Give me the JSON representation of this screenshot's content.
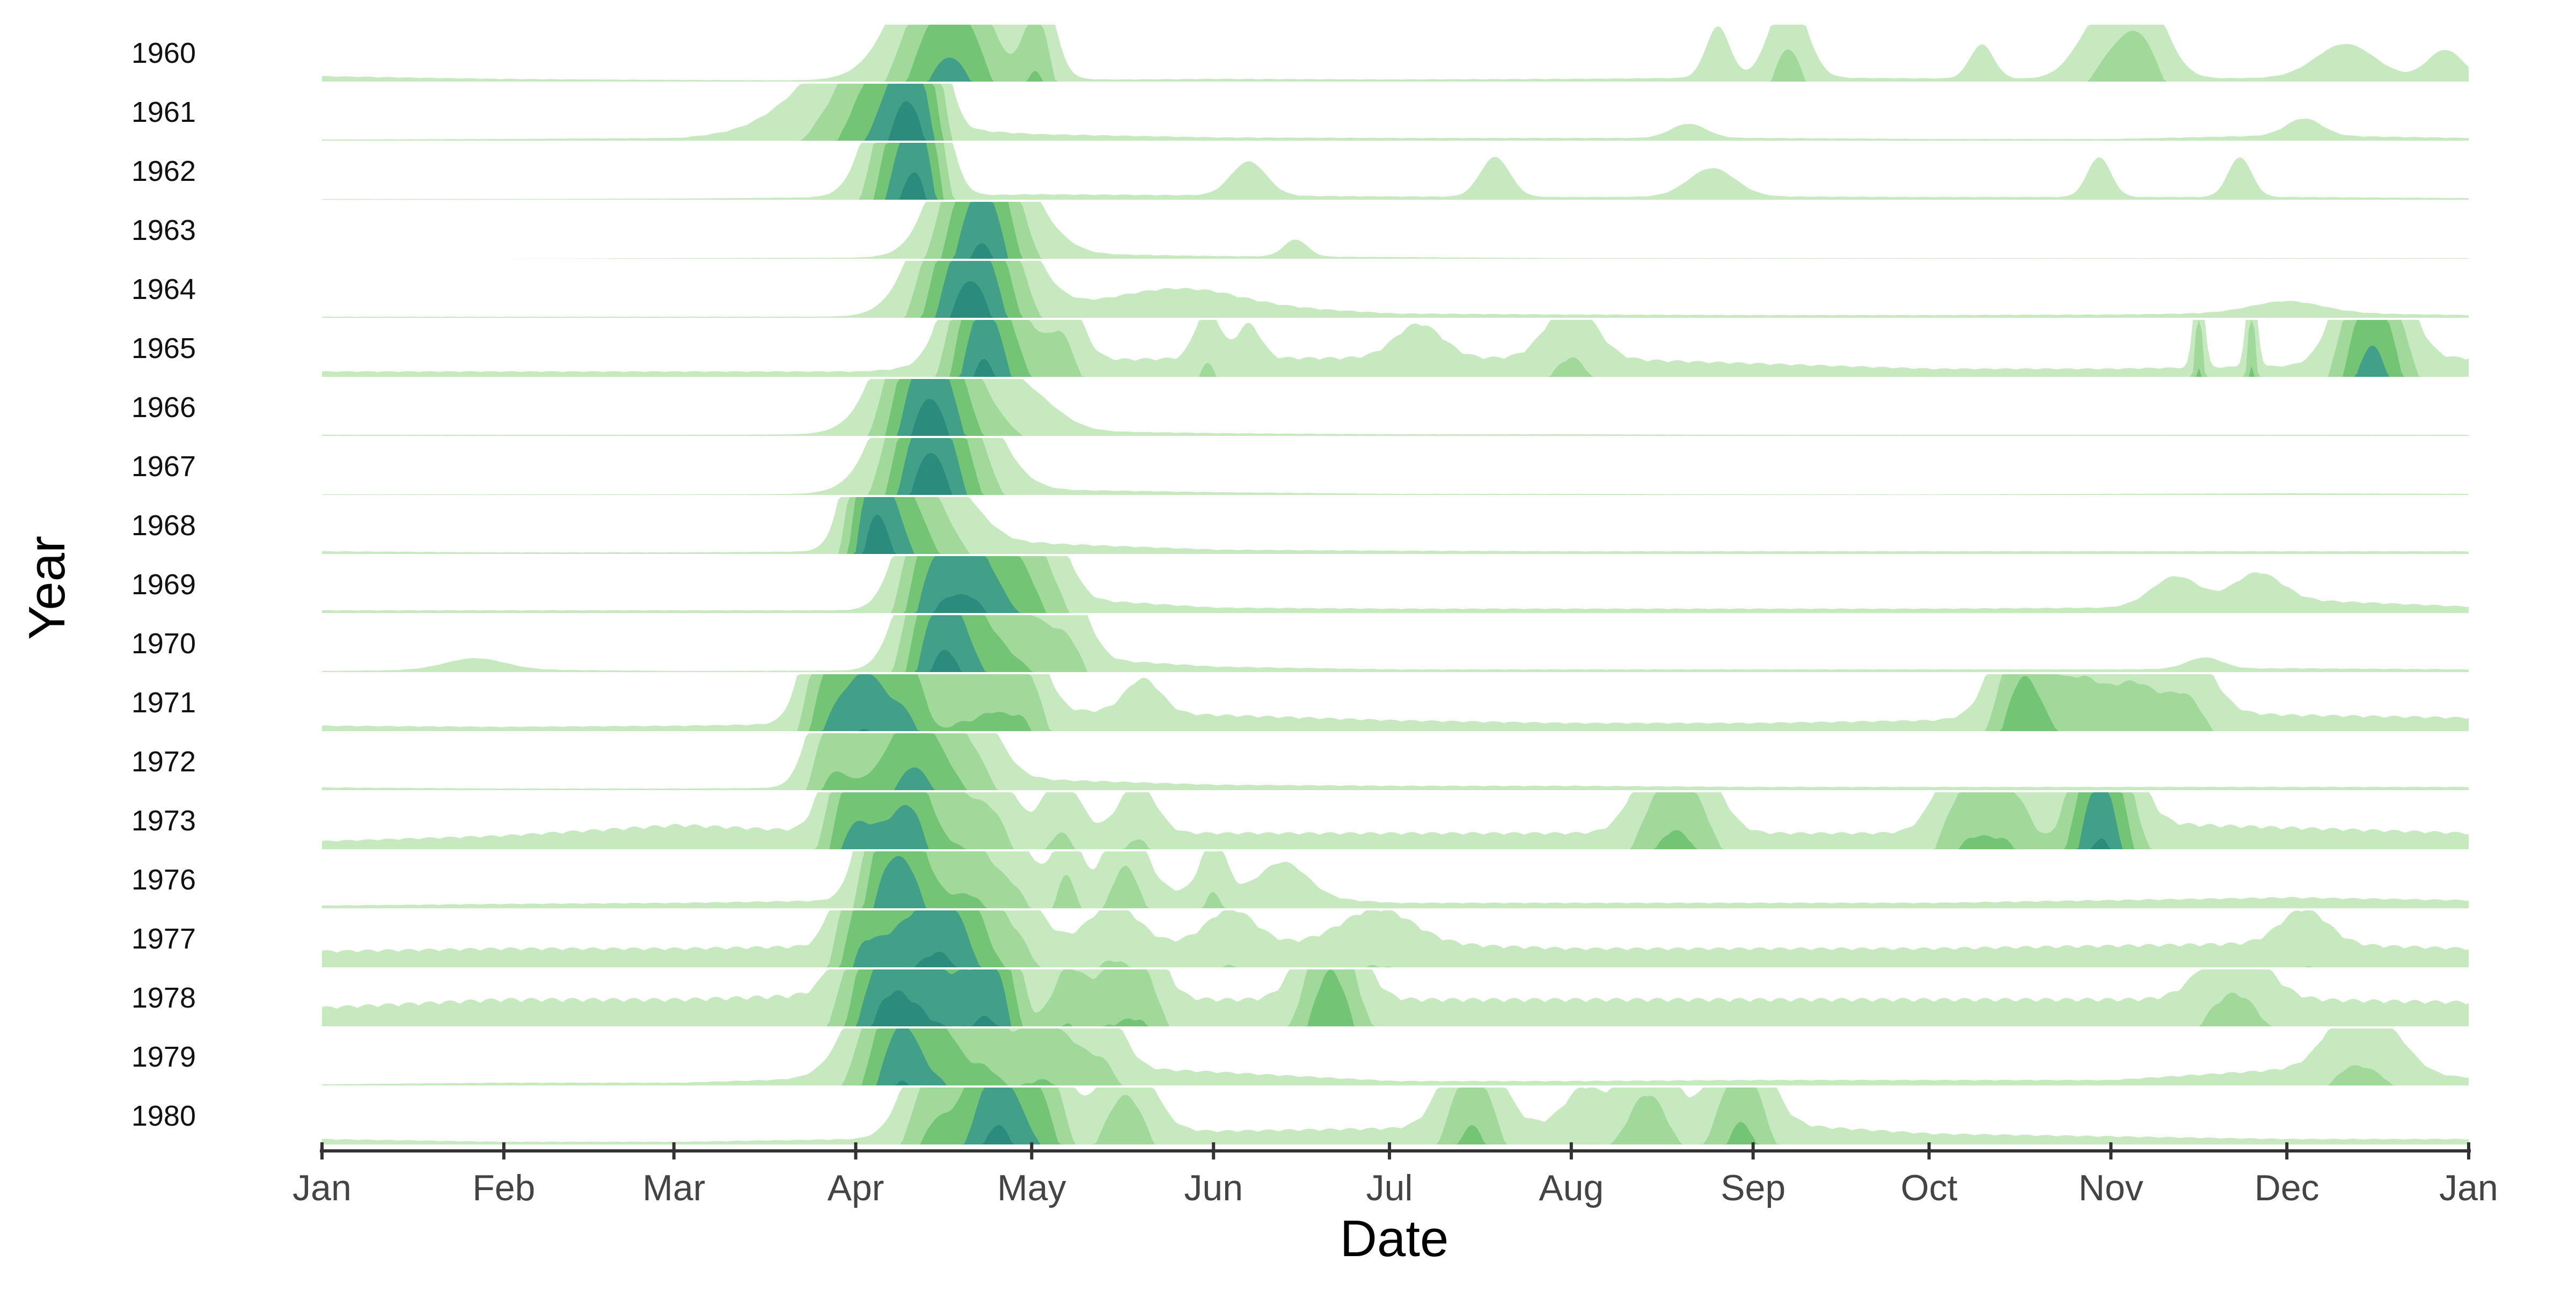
{
  "chart_data": {
    "type": "area",
    "subtype": "horizon",
    "xlabel": "Date",
    "ylabel": "Year",
    "x_ticks": [
      "Jan",
      "Feb",
      "Mar",
      "Apr",
      "May",
      "Jun",
      "Jul",
      "Aug",
      "Sep",
      "Oct",
      "Nov",
      "Dec",
      "Jan"
    ],
    "x_range": [
      "1960-01-01",
      "1961-01-01"
    ],
    "bands": 5,
    "band_colors": [
      "#c7e9c0",
      "#a1d99b",
      "#74c476",
      "#41a087",
      "#2b8c7e",
      "#1d6b6b",
      "#0f4c5c"
    ],
    "grid": false,
    "legend": "none",
    "years": [
      "1960",
      "1961",
      "1962",
      "1963",
      "1964",
      "1965",
      "1966",
      "1967",
      "1968",
      "1969",
      "1970",
      "1971",
      "1972",
      "1973",
      "1976",
      "1977",
      "1978",
      "1979",
      "1980"
    ],
    "series": [
      {
        "year": "1960",
        "baseline": [
          0.1,
          0.05,
          0.03,
          0.02,
          0.03,
          0.05,
          0.04,
          0.05,
          0.08,
          0.06,
          0.05,
          0.07,
          0.06
        ],
        "peaks": [
          {
            "d": 107,
            "h": 3.4,
            "w": 7
          },
          {
            "d": 122,
            "h": 1.8,
            "w": 2.5
          },
          {
            "d": 238,
            "h": 0.9,
            "w": 2
          },
          {
            "d": 250,
            "h": 1.5,
            "w": 3
          },
          {
            "d": 283,
            "h": 0.6,
            "w": 2
          },
          {
            "d": 303,
            "h": 0.9,
            "w": 4
          },
          {
            "d": 310,
            "h": 1.6,
            "w": 4
          },
          {
            "d": 345,
            "h": 0.6,
            "w": 5
          },
          {
            "d": 362,
            "h": 0.5,
            "w": 3
          }
        ]
      },
      {
        "year": "1961",
        "baseline": [
          0.02,
          0.03,
          0.05,
          0.3,
          0.12,
          0.06,
          0.05,
          0.05,
          0.05,
          0.03,
          0.03,
          0.1,
          0.05
        ],
        "peaks": [
          {
            "d": 88,
            "h": 1.0,
            "w": 8
          },
          {
            "d": 95,
            "h": 2.0,
            "w": 5
          },
          {
            "d": 100,
            "h": 2.5,
            "w": 3
          },
          {
            "d": 104,
            "h": 1.5,
            "w": 2.5
          },
          {
            "d": 233,
            "h": 0.25,
            "w": 3
          },
          {
            "d": 338,
            "h": 0.3,
            "w": 3
          }
        ]
      },
      {
        "year": "1962",
        "baseline": [
          0.01,
          0.01,
          0.02,
          0.05,
          0.1,
          0.08,
          0.06,
          0.05,
          0.06,
          0.05,
          0.05,
          0.05,
          0.03
        ],
        "peaks": [
          {
            "d": 96,
            "h": 0.8,
            "w": 4
          },
          {
            "d": 99,
            "h": 2.6,
            "w": 4
          },
          {
            "d": 103,
            "h": 2.2,
            "w": 3
          },
          {
            "d": 158,
            "h": 0.6,
            "w": 3
          },
          {
            "d": 200,
            "h": 0.7,
            "w": 2.5
          },
          {
            "d": 237,
            "h": 0.5,
            "w": 4
          },
          {
            "d": 303,
            "h": 0.7,
            "w": 2
          },
          {
            "d": 327,
            "h": 0.7,
            "w": 2
          }
        ]
      },
      {
        "year": "1963",
        "baseline": [
          0.0,
          0.0,
          0.01,
          0.02,
          0.1,
          0.05,
          0.03,
          0.01,
          0.01,
          0.01,
          0.01,
          0.01,
          0.01
        ],
        "peaks": [
          {
            "d": 110,
            "h": 2.6,
            "w": 5
          },
          {
            "d": 114,
            "h": 1.8,
            "w": 4
          },
          {
            "d": 120,
            "h": 0.7,
            "w": 5
          },
          {
            "d": 166,
            "h": 0.3,
            "w": 2
          }
        ]
      },
      {
        "year": "1964",
        "baseline": [
          0.02,
          0.02,
          0.02,
          0.02,
          0.15,
          0.25,
          0.08,
          0.06,
          0.05,
          0.05,
          0.06,
          0.1,
          0.05
        ],
        "peaks": [
          {
            "d": 110,
            "h": 3.0,
            "w": 6
          },
          {
            "d": 112,
            "h": 1.6,
            "w": 7
          },
          {
            "d": 145,
            "h": 0.3,
            "w": 10
          },
          {
            "d": 335,
            "h": 0.2,
            "w": 6
          }
        ]
      },
      {
        "year": "1965",
        "baseline": [
          0.1,
          0.1,
          0.1,
          0.1,
          0.3,
          0.35,
          0.35,
          0.35,
          0.25,
          0.15,
          0.15,
          0.2,
          0.35
        ],
        "peaks": [
          {
            "d": 111,
            "h": 2.8,
            "w": 4
          },
          {
            "d": 114,
            "h": 1.5,
            "w": 3
          },
          {
            "d": 119,
            "h": 1.4,
            "w": 3
          },
          {
            "d": 126,
            "h": 1.4,
            "w": 3
          },
          {
            "d": 151,
            "h": 0.9,
            "w": 2
          },
          {
            "d": 158,
            "h": 0.6,
            "w": 2
          },
          {
            "d": 187,
            "h": 0.6,
            "w": 4
          },
          {
            "d": 213,
            "h": 1.0,
            "w": 4
          },
          {
            "d": 320,
            "h": 2.0,
            "w": 0.8
          },
          {
            "d": 329,
            "h": 2.0,
            "w": 0.8
          },
          {
            "d": 348,
            "h": 2.2,
            "w": 4
          },
          {
            "d": 352,
            "h": 1.5,
            "w": 4
          }
        ]
      },
      {
        "year": "1966",
        "baseline": [
          0.02,
          0.02,
          0.02,
          0.03,
          0.1,
          0.05,
          0.03,
          0.03,
          0.02,
          0.02,
          0.02,
          0.02,
          0.02
        ],
        "peaks": [
          {
            "d": 104,
            "h": 3.0,
            "w": 5
          },
          {
            "d": 101,
            "h": 1.6,
            "w": 6
          },
          {
            "d": 113,
            "h": 0.9,
            "w": 5
          },
          {
            "d": 121,
            "h": 0.5,
            "w": 5
          }
        ]
      },
      {
        "year": "1967",
        "baseline": [
          0.01,
          0.01,
          0.01,
          0.02,
          0.1,
          0.05,
          0.02,
          0.02,
          0.01,
          0.01,
          0.02,
          0.03,
          0.02
        ],
        "peaks": [
          {
            "d": 104,
            "h": 3.0,
            "w": 5
          },
          {
            "d": 101,
            "h": 1.6,
            "w": 6
          },
          {
            "d": 112,
            "h": 1.0,
            "w": 5
          }
        ]
      },
      {
        "year": "1968",
        "baseline": [
          0.05,
          0.03,
          0.03,
          0.05,
          0.2,
          0.08,
          0.06,
          0.05,
          0.05,
          0.05,
          0.05,
          0.05,
          0.05
        ],
        "peaks": [
          {
            "d": 93,
            "h": 2.2,
            "w": 3
          },
          {
            "d": 96,
            "h": 2.6,
            "w": 4
          },
          {
            "d": 102,
            "h": 1.4,
            "w": 4
          },
          {
            "d": 108,
            "h": 0.8,
            "w": 5
          }
        ]
      },
      {
        "year": "1969",
        "baseline": [
          0.05,
          0.05,
          0.05,
          0.05,
          0.3,
          0.1,
          0.08,
          0.08,
          0.08,
          0.08,
          0.1,
          0.25,
          0.12
        ],
        "peaks": [
          {
            "d": 103,
            "h": 2.2,
            "w": 4
          },
          {
            "d": 109,
            "h": 2.6,
            "w": 5
          },
          {
            "d": 114,
            "h": 1.8,
            "w": 4
          },
          {
            "d": 120,
            "h": 1.5,
            "w": 3
          },
          {
            "d": 125,
            "h": 0.9,
            "w": 3
          },
          {
            "d": 316,
            "h": 0.5,
            "w": 4
          },
          {
            "d": 330,
            "h": 0.5,
            "w": 4
          }
        ]
      },
      {
        "year": "1970",
        "baseline": [
          0.02,
          0.05,
          0.02,
          0.03,
          0.3,
          0.1,
          0.05,
          0.05,
          0.05,
          0.05,
          0.05,
          0.07,
          0.05
        ],
        "peaks": [
          {
            "d": 103,
            "h": 2.4,
            "w": 4
          },
          {
            "d": 108,
            "h": 2.6,
            "w": 4
          },
          {
            "d": 115,
            "h": 1.6,
            "w": 4
          },
          {
            "d": 122,
            "h": 1.2,
            "w": 4
          },
          {
            "d": 128,
            "h": 0.9,
            "w": 3
          },
          {
            "d": 26,
            "h": 0.2,
            "w": 5
          },
          {
            "d": 321,
            "h": 0.2,
            "w": 3
          }
        ]
      },
      {
        "year": "1971",
        "baseline": [
          0.1,
          0.08,
          0.1,
          0.15,
          0.4,
          0.3,
          0.2,
          0.15,
          0.15,
          0.2,
          0.4,
          0.3,
          0.25
        ],
        "peaks": [
          {
            "d": 85,
            "h": 1.6,
            "w": 3
          },
          {
            "d": 90,
            "h": 2.2,
            "w": 4
          },
          {
            "d": 95,
            "h": 2.4,
            "w": 4
          },
          {
            "d": 101,
            "h": 2.0,
            "w": 3
          },
          {
            "d": 108,
            "h": 1.5,
            "w": 3
          },
          {
            "d": 114,
            "h": 1.6,
            "w": 3
          },
          {
            "d": 120,
            "h": 1.6,
            "w": 3
          },
          {
            "d": 140,
            "h": 0.6,
            "w": 3
          },
          {
            "d": 290,
            "h": 2.6,
            "w": 4
          },
          {
            "d": 300,
            "h": 1.4,
            "w": 4
          },
          {
            "d": 309,
            "h": 1.3,
            "w": 4
          },
          {
            "d": 318,
            "h": 1.2,
            "w": 4
          }
        ]
      },
      {
        "year": "1972",
        "baseline": [
          0.05,
          0.03,
          0.03,
          0.05,
          0.2,
          0.1,
          0.08,
          0.08,
          0.06,
          0.06,
          0.06,
          0.06,
          0.06
        ],
        "peaks": [
          {
            "d": 86,
            "h": 1.6,
            "w": 3
          },
          {
            "d": 92,
            "h": 1.6,
            "w": 4
          },
          {
            "d": 100,
            "h": 2.6,
            "w": 4
          },
          {
            "d": 106,
            "h": 1.4,
            "w": 4
          },
          {
            "d": 112,
            "h": 1.0,
            "w": 4
          }
        ]
      },
      {
        "year": "1973",
        "baseline": [
          0.15,
          0.25,
          0.45,
          0.3,
          0.3,
          0.3,
          0.3,
          0.3,
          0.3,
          0.3,
          0.5,
          0.4,
          0.3
        ],
        "peaks": [
          {
            "d": 89,
            "h": 2.0,
            "w": 3
          },
          {
            "d": 95,
            "h": 2.6,
            "w": 4
          },
          {
            "d": 101,
            "h": 2.2,
            "w": 3
          },
          {
            "d": 108,
            "h": 1.6,
            "w": 4
          },
          {
            "d": 115,
            "h": 1.0,
            "w": 3
          },
          {
            "d": 126,
            "h": 1.0,
            "w": 3
          },
          {
            "d": 139,
            "h": 0.9,
            "w": 3
          },
          {
            "d": 228,
            "h": 1.4,
            "w": 4
          },
          {
            "d": 234,
            "h": 1.3,
            "w": 4
          },
          {
            "d": 280,
            "h": 1.6,
            "w": 4
          },
          {
            "d": 288,
            "h": 1.5,
            "w": 4
          },
          {
            "d": 302,
            "h": 2.4,
            "w": 4
          },
          {
            "d": 305,
            "h": 1.6,
            "w": 4
          }
        ]
      },
      {
        "year": "1976",
        "baseline": [
          0.05,
          0.08,
          0.1,
          0.15,
          0.4,
          0.3,
          0.1,
          0.1,
          0.1,
          0.1,
          0.15,
          0.2,
          0.15
        ],
        "peaks": [
          {
            "d": 95,
            "h": 2.6,
            "w": 3
          },
          {
            "d": 100,
            "h": 2.4,
            "w": 3
          },
          {
            "d": 106,
            "h": 1.6,
            "w": 4
          },
          {
            "d": 112,
            "h": 1.2,
            "w": 3
          },
          {
            "d": 118,
            "h": 0.9,
            "w": 3
          },
          {
            "d": 127,
            "h": 1.2,
            "w": 2
          },
          {
            "d": 137,
            "h": 1.4,
            "w": 3
          },
          {
            "d": 152,
            "h": 1.0,
            "w": 2
          },
          {
            "d": 164,
            "h": 0.6,
            "w": 4
          }
        ]
      },
      {
        "year": "1977",
        "baseline": [
          0.3,
          0.35,
          0.35,
          0.4,
          0.45,
          0.45,
          0.45,
          0.35,
          0.35,
          0.35,
          0.4,
          0.45,
          0.35
        ],
        "peaks": [
          {
            "d": 91,
            "h": 2.0,
            "w": 3
          },
          {
            "d": 97,
            "h": 2.4,
            "w": 4
          },
          {
            "d": 104,
            "h": 2.6,
            "w": 4
          },
          {
            "d": 110,
            "h": 2.2,
            "w": 4
          },
          {
            "d": 118,
            "h": 1.0,
            "w": 4
          },
          {
            "d": 135,
            "h": 0.7,
            "w": 4
          },
          {
            "d": 155,
            "h": 0.6,
            "w": 4
          },
          {
            "d": 180,
            "h": 0.6,
            "w": 6
          },
          {
            "d": 338,
            "h": 0.6,
            "w": 4
          }
        ]
      },
      {
        "year": "1978",
        "baseline": [
          0.35,
          0.5,
          0.5,
          0.6,
          0.6,
          0.5,
          0.5,
          0.5,
          0.5,
          0.5,
          0.5,
          0.5,
          0.45
        ],
        "peaks": [
          {
            "d": 93,
            "h": 2.0,
            "w": 4
          },
          {
            "d": 98,
            "h": 2.4,
            "w": 4
          },
          {
            "d": 104,
            "h": 2.2,
            "w": 4
          },
          {
            "d": 111,
            "h": 2.5,
            "w": 4
          },
          {
            "d": 116,
            "h": 2.0,
            "w": 3
          },
          {
            "d": 127,
            "h": 1.4,
            "w": 3
          },
          {
            "d": 134,
            "h": 1.2,
            "w": 3
          },
          {
            "d": 140,
            "h": 1.4,
            "w": 3
          },
          {
            "d": 172,
            "h": 2.5,
            "w": 4
          },
          {
            "d": 326,
            "h": 1.1,
            "w": 5
          }
        ]
      },
      {
        "year": "1979",
        "baseline": [
          0.02,
          0.05,
          0.05,
          0.15,
          0.4,
          0.25,
          0.08,
          0.08,
          0.1,
          0.1,
          0.1,
          0.3,
          0.15
        ],
        "peaks": [
          {
            "d": 95,
            "h": 1.8,
            "w": 5
          },
          {
            "d": 100,
            "h": 2.6,
            "w": 4
          },
          {
            "d": 107,
            "h": 1.8,
            "w": 3
          },
          {
            "d": 113,
            "h": 1.5,
            "w": 3
          },
          {
            "d": 120,
            "h": 1.3,
            "w": 4
          },
          {
            "d": 127,
            "h": 1.2,
            "w": 4
          },
          {
            "d": 134,
            "h": 0.8,
            "w": 3
          },
          {
            "d": 345,
            "h": 0.9,
            "w": 4
          },
          {
            "d": 352,
            "h": 0.7,
            "w": 4
          }
        ]
      },
      {
        "year": "1980",
        "baseline": [
          0.1,
          0.05,
          0.05,
          0.1,
          0.3,
          0.25,
          0.3,
          0.4,
          0.4,
          0.2,
          0.15,
          0.1,
          0.1
        ],
        "peaks": [
          {
            "d": 104,
            "h": 2.0,
            "w": 4
          },
          {
            "d": 113,
            "h": 2.6,
            "w": 4
          },
          {
            "d": 118,
            "h": 2.3,
            "w": 4
          },
          {
            "d": 124,
            "h": 1.5,
            "w": 3
          },
          {
            "d": 137,
            "h": 1.6,
            "w": 4
          },
          {
            "d": 196,
            "h": 2.0,
            "w": 4
          },
          {
            "d": 215,
            "h": 0.6,
            "w": 3
          },
          {
            "d": 226,
            "h": 1.5,
            "w": 4
          },
          {
            "d": 242,
            "h": 2.0,
            "w": 4
          }
        ]
      }
    ]
  }
}
